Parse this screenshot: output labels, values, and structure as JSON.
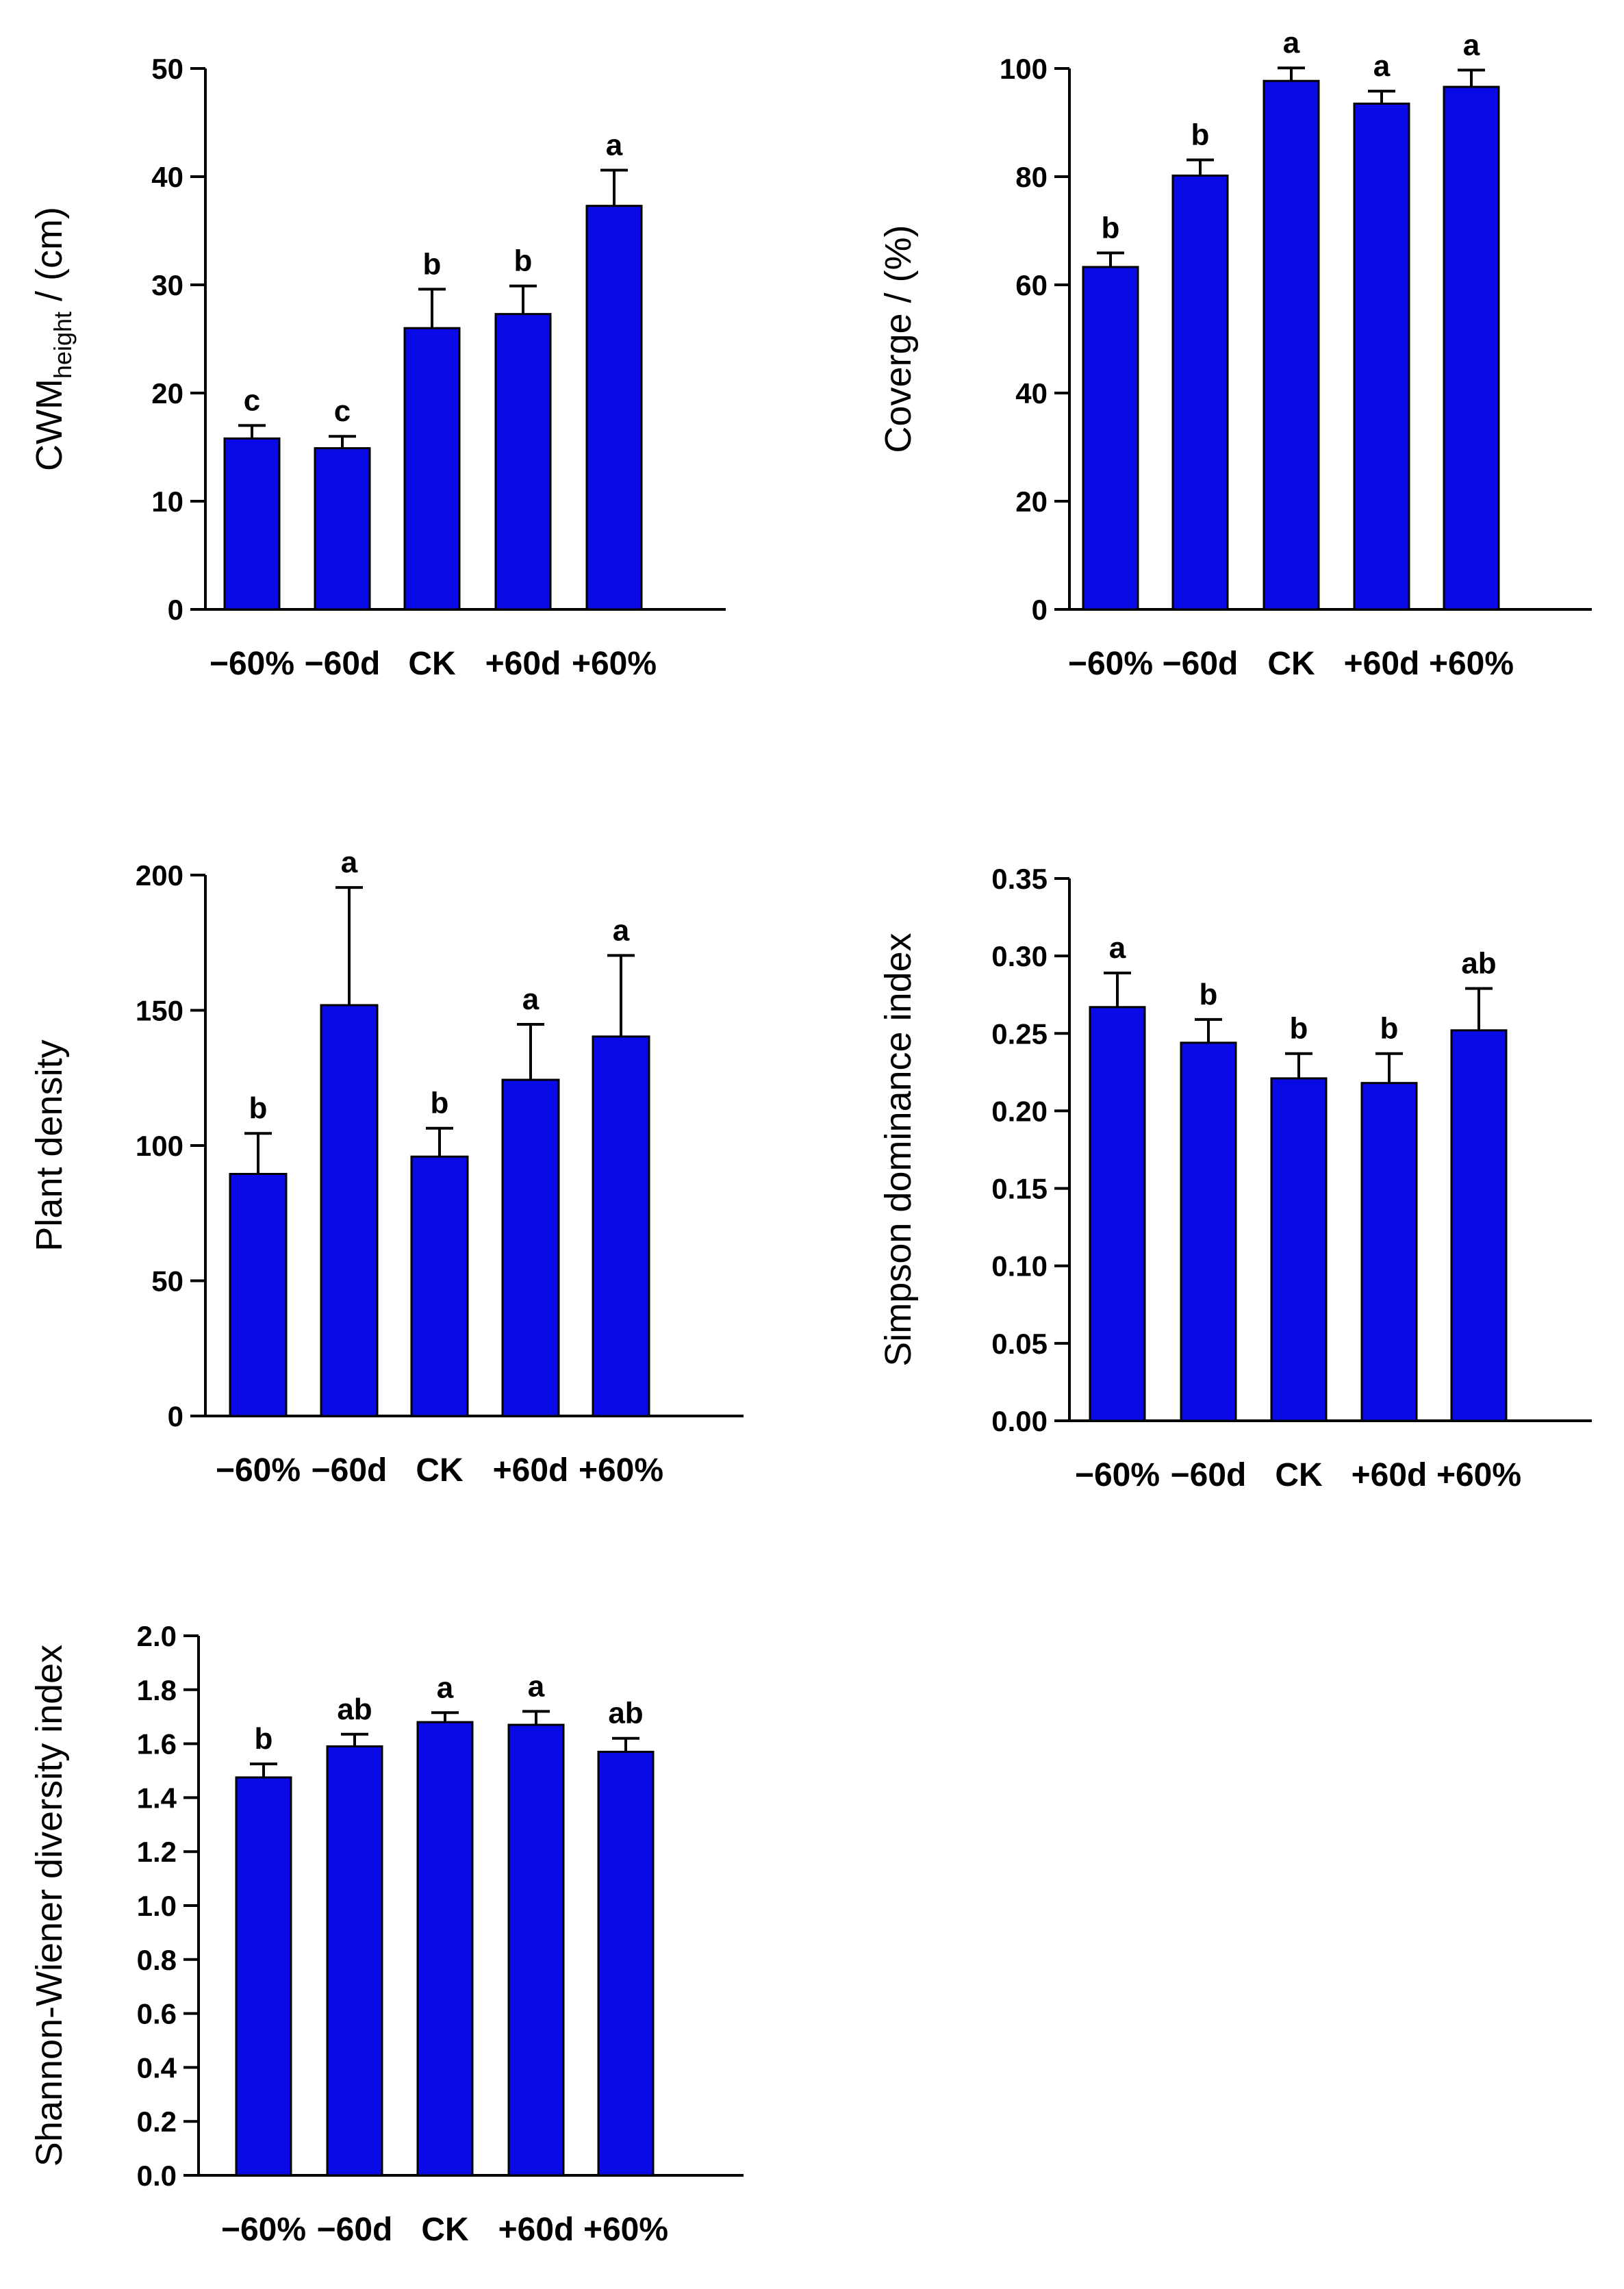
{
  "colors": {
    "bar": "#0a0ae6",
    "axis": "#000000"
  },
  "chart_data": [
    {
      "id": "cwm-height",
      "type": "bar",
      "ylabel": {
        "main": "CWM",
        "sub": "height",
        "rest": " / (cm)"
      },
      "ylim": [
        0,
        50
      ],
      "yticks": [
        "0",
        "10",
        "20",
        "30",
        "40",
        "50"
      ],
      "categories": [
        "−60%",
        "−60d",
        "CK",
        "+60d",
        "+60%"
      ],
      "values": [
        15.8,
        14.9,
        26.0,
        27.3,
        37.3
      ],
      "errors": [
        1.2,
        1.1,
        3.6,
        2.6,
        3.3
      ],
      "letters": [
        "c",
        "c",
        "b",
        "b",
        "a"
      ]
    },
    {
      "id": "coverage",
      "type": "bar",
      "ylabel": {
        "main": "Coverge / (%)"
      },
      "ylim": [
        0,
        100
      ],
      "yticks": [
        "0",
        "20",
        "40",
        "60",
        "80",
        "100"
      ],
      "categories": [
        "−60%",
        "−60d",
        "CK",
        "+60d",
        "+60%"
      ],
      "values": [
        63.3,
        80.2,
        97.7,
        93.5,
        96.6
      ],
      "errors": [
        2.6,
        2.9,
        2.4,
        2.3,
        3.1
      ],
      "letters": [
        "b",
        "b",
        "a",
        "a",
        "a"
      ]
    },
    {
      "id": "plant-density",
      "type": "bar",
      "ylabel": {
        "main": "Plant density"
      },
      "ylim": [
        0,
        200
      ],
      "yticks": [
        "0",
        "50",
        "100",
        "150",
        "200"
      ],
      "categories": [
        "−60%",
        "−60d",
        "CK",
        "+60d",
        "+60%"
      ],
      "values": [
        89.5,
        151.9,
        95.9,
        124.3,
        140.3
      ],
      "errors": [
        15.0,
        43.5,
        10.5,
        20.5,
        30.0
      ],
      "letters": [
        "b",
        "a",
        "b",
        "a",
        "a"
      ]
    },
    {
      "id": "simpson",
      "type": "bar",
      "ylabel": {
        "main": "Simpson dominance index"
      },
      "ylim": [
        0,
        0.35
      ],
      "yticks": [
        "0.00",
        "0.05",
        "0.10",
        "0.15",
        "0.20",
        "0.25",
        "0.30",
        "0.35"
      ],
      "categories": [
        "−60%",
        "−60d",
        "CK",
        "+60d",
        "+60%"
      ],
      "values": [
        0.267,
        0.244,
        0.221,
        0.218,
        0.252
      ],
      "errors": [
        0.022,
        0.015,
        0.016,
        0.019,
        0.027
      ],
      "letters": [
        "a",
        "b",
        "b",
        "b",
        "ab"
      ]
    },
    {
      "id": "shannon",
      "type": "bar",
      "ylabel": {
        "main": "Shannon-Wiener diversity index"
      },
      "ylim": [
        0,
        2.0
      ],
      "yticks": [
        "0.0",
        "0.2",
        "0.4",
        "0.6",
        "0.8",
        "1.0",
        "1.2",
        "1.4",
        "1.6",
        "1.8",
        "2.0"
      ],
      "categories": [
        "−60%",
        "−60d",
        "CK",
        "+60d",
        "+60%"
      ],
      "values": [
        1.475,
        1.59,
        1.68,
        1.67,
        1.57
      ],
      "errors": [
        0.05,
        0.045,
        0.035,
        0.05,
        0.05
      ],
      "letters": [
        "b",
        "ab",
        "a",
        "a",
        "ab"
      ]
    }
  ]
}
